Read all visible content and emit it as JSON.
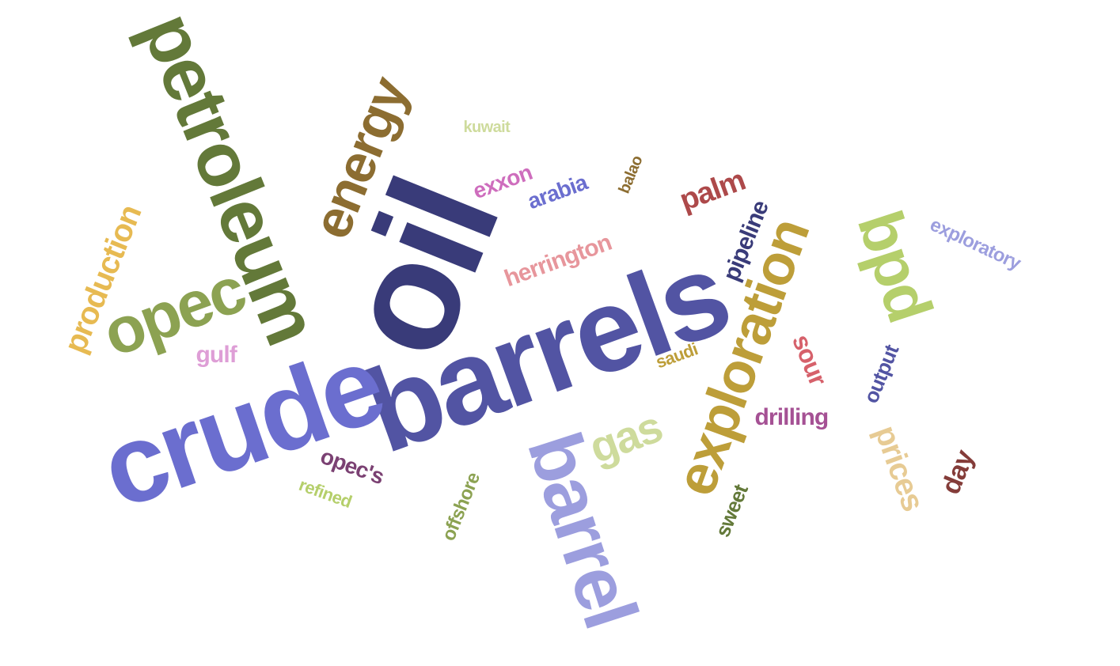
{
  "words": [
    {
      "id": "oil",
      "text": "oil",
      "color": "#393b79"
    },
    {
      "id": "barrels",
      "text": "barrels",
      "color": "#5254a3"
    },
    {
      "id": "crude",
      "text": "crude",
      "color": "#6b6ecf"
    },
    {
      "id": "petroleum",
      "text": "petroleum",
      "color": "#637939"
    },
    {
      "id": "barrel",
      "text": "barrel",
      "color": "#9c9ede"
    },
    {
      "id": "exploration",
      "text": "exploration",
      "color": "#bd9e39"
    },
    {
      "id": "opec",
      "text": "opec",
      "color": "#8ca252"
    },
    {
      "id": "bpd",
      "text": "bpd",
      "color": "#b5cf6b"
    },
    {
      "id": "energy",
      "text": "energy",
      "color": "#8c6d31"
    },
    {
      "id": "production",
      "text": "production",
      "color": "#e7ba52"
    },
    {
      "id": "gas",
      "text": "gas",
      "color": "#cedb9c"
    },
    {
      "id": "prices",
      "text": "prices",
      "color": "#e7cb94"
    },
    {
      "id": "herrington",
      "text": "herrington",
      "color": "#e7969c"
    },
    {
      "id": "pipeline",
      "text": "pipeline",
      "color": "#393b79"
    },
    {
      "id": "palm",
      "text": "palm",
      "color": "#ad494a"
    },
    {
      "id": "drilling",
      "text": "drilling",
      "color": "#a55194"
    },
    {
      "id": "exploratory",
      "text": "exploratory",
      "color": "#9c9ede"
    },
    {
      "id": "arabia",
      "text": "arabia",
      "color": "#6b6ecf"
    },
    {
      "id": "exxon",
      "text": "exxon",
      "color": "#ce6dbd"
    },
    {
      "id": "sour",
      "text": "sour",
      "color": "#d6616b"
    },
    {
      "id": "output",
      "text": "output",
      "color": "#5254a3"
    },
    {
      "id": "day",
      "text": "day",
      "color": "#843c39"
    },
    {
      "id": "opecs",
      "text": "opec's",
      "color": "#7b4173"
    },
    {
      "id": "gulf",
      "text": "gulf",
      "color": "#de9ed6"
    },
    {
      "id": "refined",
      "text": "refined",
      "color": "#b5cf6b"
    },
    {
      "id": "offshore",
      "text": "offshore",
      "color": "#8ca252"
    },
    {
      "id": "sweet",
      "text": "sweet",
      "color": "#637939"
    },
    {
      "id": "saudi",
      "text": "saudi",
      "color": "#bd9e39"
    },
    {
      "id": "balao",
      "text": "balao",
      "color": "#8c6d31"
    },
    {
      "id": "kuwait",
      "text": "kuwait",
      "color": "#cedb9c"
    }
  ]
}
